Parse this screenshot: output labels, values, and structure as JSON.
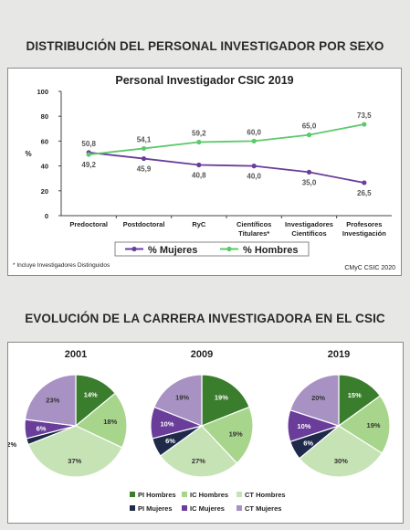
{
  "sections": {
    "top_title": "DISTRIBUCIÓN DEL PERSONAL INVESTIGADOR POR SEXO",
    "bottom_title": "EVOLUCIÓN DE LA CARRERA INVESTIGADORA EN EL CSIC"
  },
  "footnote": "* Incluye Investigadores Distinguidos",
  "credit": "CMyC CSIC 2020",
  "chart_data": [
    {
      "type": "line",
      "title": "Personal Investigador CSIC 2019",
      "ylabel": "%",
      "ylim": [
        0,
        100
      ],
      "yticks": [
        0,
        20,
        40,
        60,
        80,
        100
      ],
      "categories": [
        [
          "Predoctoral"
        ],
        [
          "Postdoctoral"
        ],
        [
          "RyC"
        ],
        [
          "Científicos",
          "Titulares*"
        ],
        [
          "Investigadores",
          "Científicos"
        ],
        [
          "Profesores",
          "Investigación"
        ]
      ],
      "series": [
        {
          "name": "% Mujeres",
          "color": "#6a3d9a",
          "labels": [
            "50,8",
            "45,9",
            "40,8",
            "40,0",
            "35,0",
            "26,5"
          ],
          "values": [
            50.8,
            45.9,
            40.8,
            40.0,
            35.0,
            26.5
          ]
        },
        {
          "name": "% Hombres",
          "color": "#5cc96a",
          "labels": [
            "49,2",
            "54,1",
            "59,2",
            "60,0",
            "65,0",
            "73,5"
          ],
          "values": [
            49.2,
            54.1,
            59.2,
            60.0,
            65.0,
            73.5
          ]
        }
      ],
      "legend": "bottom",
      "grid": false
    },
    {
      "type": "pie",
      "pies": [
        {
          "title": "2001",
          "values": [
            14,
            18,
            37,
            2,
            6,
            23
          ],
          "labels": [
            "14%",
            "18%",
            "37%",
            "2%",
            "6%",
            "23%"
          ]
        },
        {
          "title": "2009",
          "values": [
            19,
            19,
            27,
            6,
            10,
            19
          ],
          "labels": [
            "19%",
            "19%",
            "27%",
            "6%",
            "10%",
            "19%"
          ]
        },
        {
          "title": "2019",
          "values": [
            15,
            19,
            30,
            6,
            10,
            20
          ],
          "labels": [
            "15%",
            "19%",
            "30%",
            "6%",
            "10%",
            "20%"
          ]
        }
      ],
      "slices": [
        {
          "name": "PI Hombres",
          "color": "#3a7d2c"
        },
        {
          "name": "IC Hombres",
          "color": "#a8d58c"
        },
        {
          "name": "CT Hombres",
          "color": "#c6e3b5"
        },
        {
          "name": "PI Mujeres",
          "color": "#1f2a4a"
        },
        {
          "name": "IC Mujeres",
          "color": "#6a3d9a"
        },
        {
          "name": "CT Mujeres",
          "color": "#a892c4"
        }
      ],
      "legend": "bottom"
    }
  ]
}
